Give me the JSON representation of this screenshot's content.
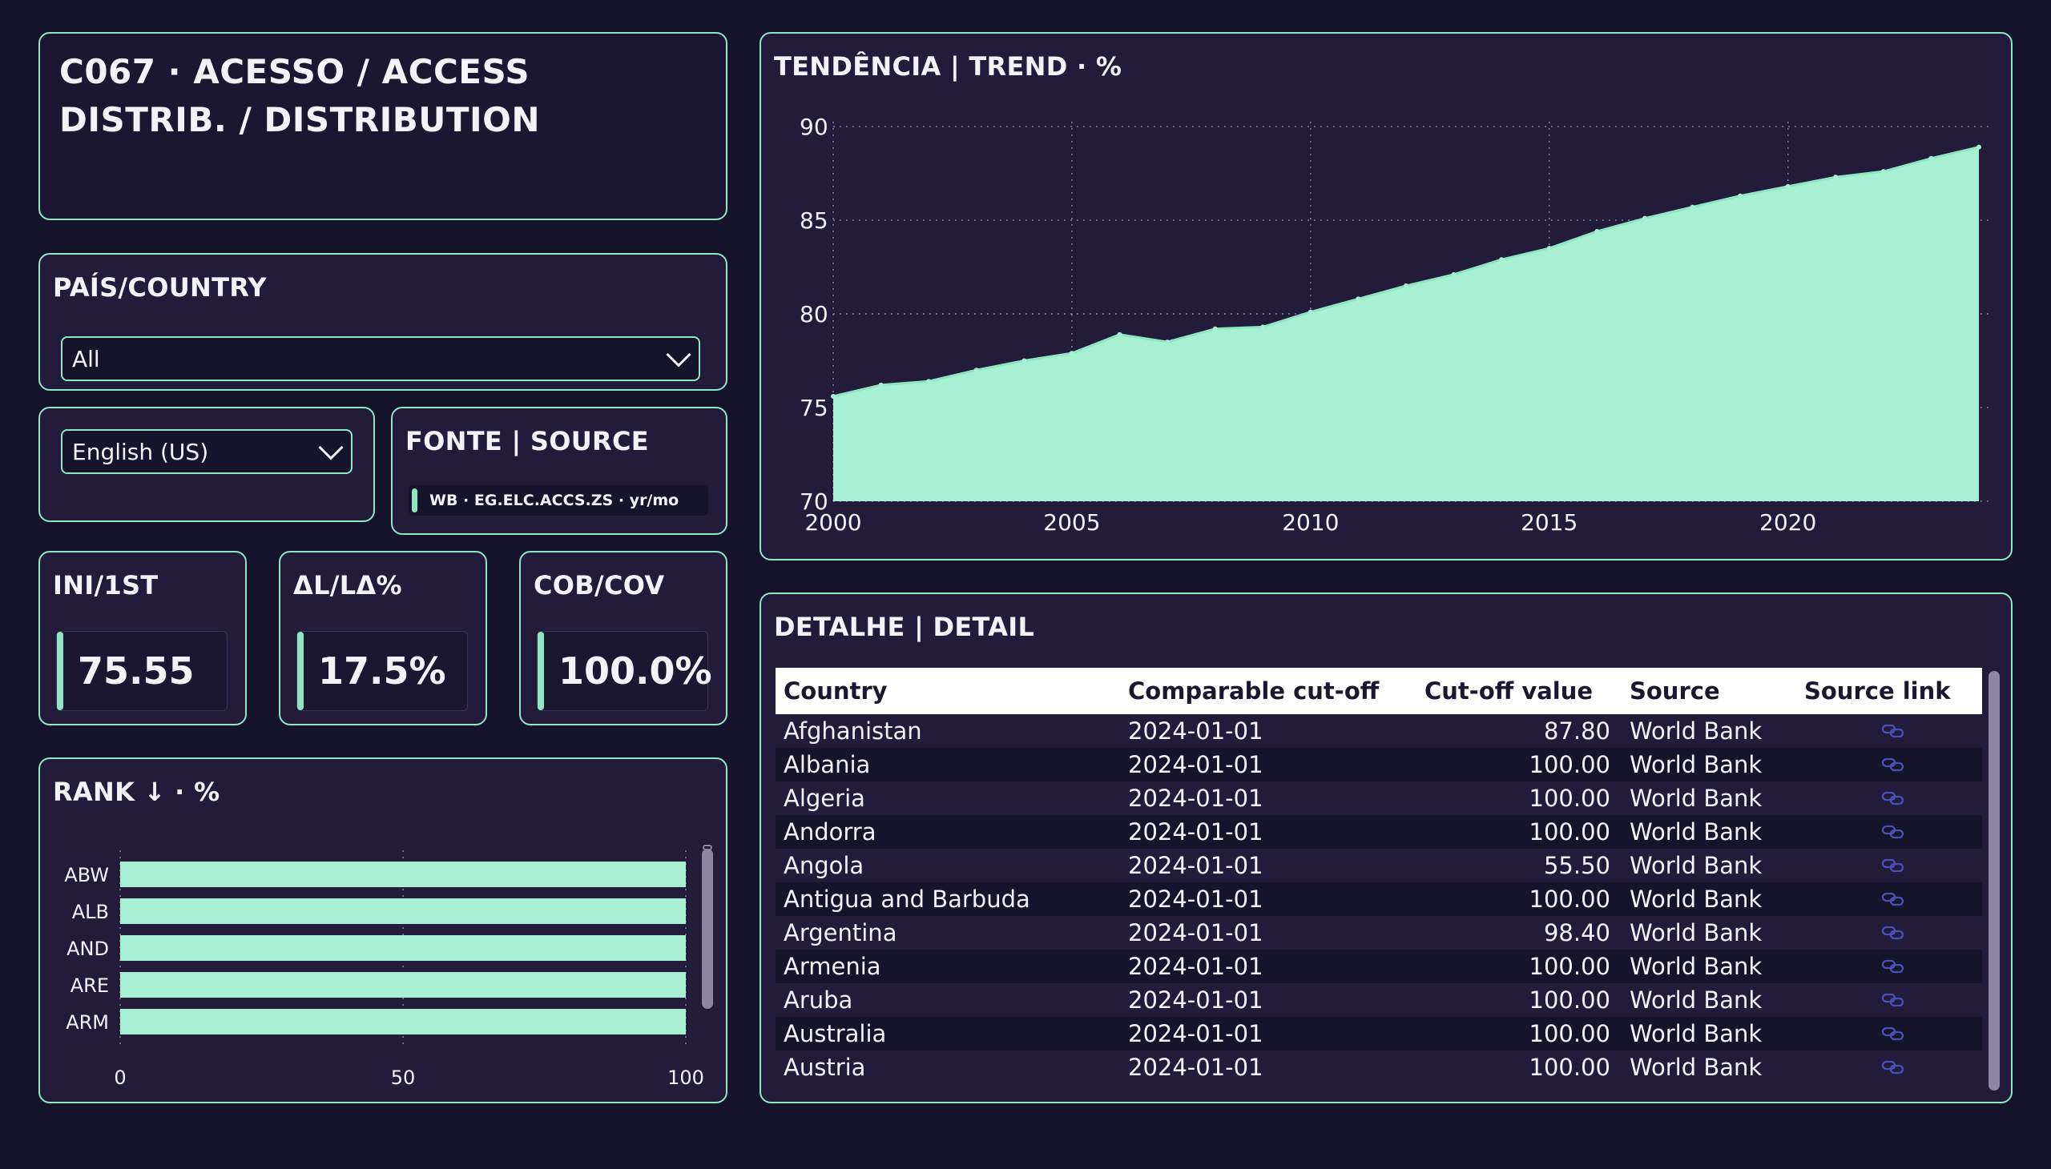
{
  "header": {
    "title_line1": "C067 · ACESSO / ACCESS",
    "title_line2": "DISTRIB. / DISTRIBUTION"
  },
  "country_filter": {
    "label": "PAÍS/COUNTRY",
    "selected": "All"
  },
  "language_filter": {
    "selected": "English (US)"
  },
  "source": {
    "label": "FONTE | SOURCE",
    "value": "WB · EG.ELC.ACCS.ZS · yr/mo"
  },
  "kpis": [
    {
      "label": "INI/1ST",
      "value": "75.55"
    },
    {
      "label": "ΔL/LΔ%",
      "value": "17.5%"
    },
    {
      "label": "COB/COV",
      "value": "100.0%"
    }
  ],
  "rank": {
    "title": "RANK ↓ · %",
    "chart_data": {
      "type": "bar",
      "orientation": "horizontal",
      "categories": [
        "ABW",
        "ALB",
        "AND",
        "ARE",
        "ARM"
      ],
      "values": [
        100,
        100,
        100,
        100,
        100
      ],
      "xlim": [
        0,
        100
      ],
      "xticks": [
        "0",
        "50",
        "100"
      ],
      "grid": true,
      "color": "#a8f0d3"
    }
  },
  "trend": {
    "title": "TENDÊNCIA | TREND · %",
    "chart_data": {
      "type": "area",
      "x": [
        2000,
        2001,
        2002,
        2003,
        2004,
        2005,
        2006,
        2007,
        2008,
        2009,
        2010,
        2011,
        2012,
        2013,
        2014,
        2015,
        2016,
        2017,
        2018,
        2019,
        2020,
        2021,
        2022,
        2023,
        2024
      ],
      "y": [
        75.6,
        76.2,
        76.4,
        77.0,
        77.5,
        77.9,
        78.9,
        78.5,
        79.2,
        79.3,
        80.1,
        80.8,
        81.5,
        82.1,
        82.9,
        83.5,
        84.4,
        85.1,
        85.7,
        86.3,
        86.8,
        87.3,
        87.6,
        88.3,
        88.9
      ],
      "xlim": [
        2000,
        2024
      ],
      "ylim": [
        70,
        90
      ],
      "xticks": [
        "2000",
        "2005",
        "2010",
        "2015",
        "2020"
      ],
      "yticks": [
        "70",
        "75",
        "80",
        "85",
        "90"
      ],
      "grid": true,
      "color": "#a8f0d3"
    }
  },
  "detail": {
    "title": "DETALHE | DETAIL",
    "columns": [
      "Country",
      "Comparable cut-off",
      "Cut-off value",
      "Source",
      "Source link"
    ],
    "rows": [
      {
        "country": "Afghanistan",
        "cutoff": "2024-01-01",
        "value": "87.80",
        "source": "World Bank"
      },
      {
        "country": "Albania",
        "cutoff": "2024-01-01",
        "value": "100.00",
        "source": "World Bank"
      },
      {
        "country": "Algeria",
        "cutoff": "2024-01-01",
        "value": "100.00",
        "source": "World Bank"
      },
      {
        "country": "Andorra",
        "cutoff": "2024-01-01",
        "value": "100.00",
        "source": "World Bank"
      },
      {
        "country": "Angola",
        "cutoff": "2024-01-01",
        "value": "55.50",
        "source": "World Bank"
      },
      {
        "country": "Antigua and Barbuda",
        "cutoff": "2024-01-01",
        "value": "100.00",
        "source": "World Bank"
      },
      {
        "country": "Argentina",
        "cutoff": "2024-01-01",
        "value": "98.40",
        "source": "World Bank"
      },
      {
        "country": "Armenia",
        "cutoff": "2024-01-01",
        "value": "100.00",
        "source": "World Bank"
      },
      {
        "country": "Aruba",
        "cutoff": "2024-01-01",
        "value": "100.00",
        "source": "World Bank"
      },
      {
        "country": "Australia",
        "cutoff": "2024-01-01",
        "value": "100.00",
        "source": "World Bank"
      },
      {
        "country": "Austria",
        "cutoff": "2024-01-01",
        "value": "100.00",
        "source": "World Bank"
      }
    ],
    "link_icon": "link-icon"
  },
  "colors": {
    "accent": "#8fe6c3",
    "fill": "#a8f0d3",
    "background": "#16142a",
    "card": "#221c3a"
  }
}
